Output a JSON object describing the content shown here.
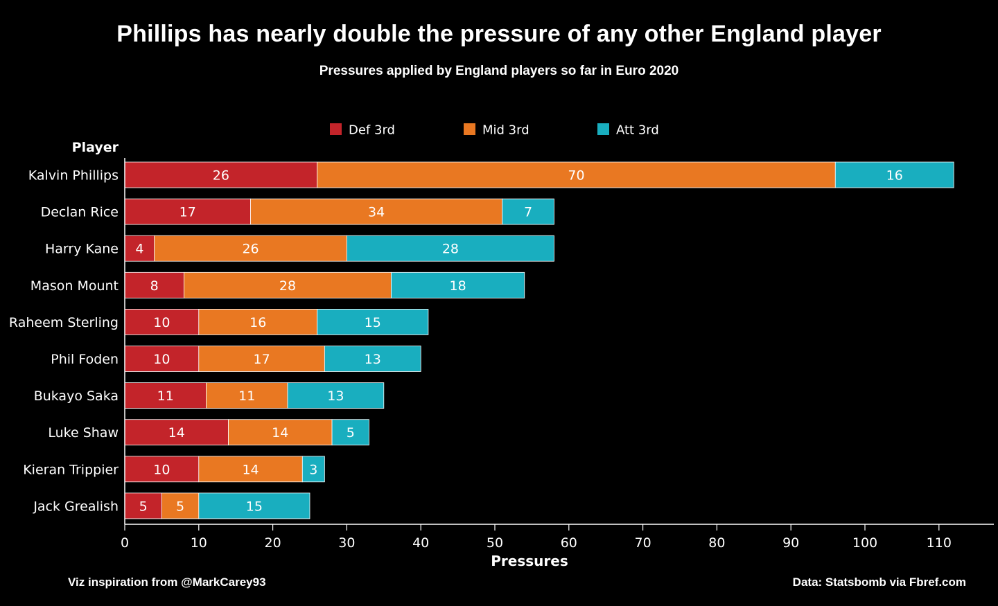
{
  "chart_data": {
    "type": "bar",
    "orientation": "horizontal",
    "stacked": true,
    "title": "Phillips has nearly double the pressure of any other England player",
    "subtitle": "Pressures applied by England players so far in Euro 2020",
    "xlabel": "Pressures",
    "ylabel": "Player",
    "xlim": [
      0,
      112
    ],
    "xticks": [
      0,
      10,
      20,
      30,
      40,
      50,
      60,
      70,
      80,
      90,
      100,
      110
    ],
    "grid": false,
    "legend_position": "top",
    "categories": [
      "Kalvin Phillips",
      "Declan Rice",
      "Harry Kane",
      "Mason Mount",
      "Raheem Sterling",
      "Phil Foden",
      "Bukayo Saka",
      "Luke Shaw",
      "Kieran Trippier",
      "Jack Grealish"
    ],
    "series": [
      {
        "name": "Def 3rd",
        "color": "#c3242a",
        "values": [
          26,
          17,
          4,
          8,
          10,
          10,
          11,
          14,
          10,
          5
        ]
      },
      {
        "name": "Mid 3rd",
        "color": "#e97822",
        "values": [
          70,
          34,
          26,
          28,
          16,
          17,
          11,
          14,
          14,
          5
        ]
      },
      {
        "name": "Att 3rd",
        "color": "#19aebf",
        "values": [
          16,
          7,
          28,
          18,
          15,
          13,
          13,
          5,
          3,
          15
        ]
      }
    ]
  },
  "footer": {
    "left": "Viz inspiration from @MarkCarey93",
    "right": "Data: Statsbomb via Fbref.com"
  }
}
